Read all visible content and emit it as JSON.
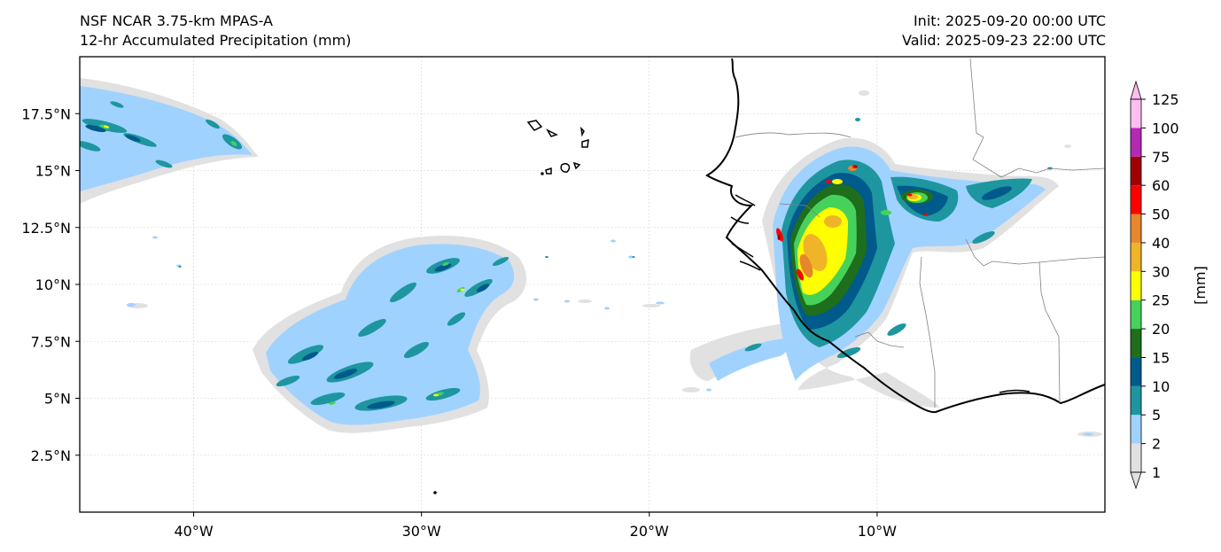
{
  "header": {
    "title_line1": "NSF NCAR 3.75-km MPAS-A",
    "title_line2": "12-hr Accumulated Precipitation (mm)",
    "init": "Init: 2025-09-20 00:00 UTC",
    "valid": "Valid: 2025-09-23 22:00 UTC"
  },
  "map": {
    "lon_range": [
      -45,
      0
    ],
    "lat_range": [
      0,
      20
    ],
    "lon_ticks": [
      {
        "value": -40,
        "label": "40°W"
      },
      {
        "value": -30,
        "label": "30°W"
      },
      {
        "value": -20,
        "label": "20°W"
      },
      {
        "value": -10,
        "label": "10°W"
      }
    ],
    "lat_ticks": [
      {
        "value": 17.5,
        "label": "17.5°N"
      },
      {
        "value": 15,
        "label": "15°N"
      },
      {
        "value": 12.5,
        "label": "12.5°N"
      },
      {
        "value": 10,
        "label": "10°N"
      },
      {
        "value": 7.5,
        "label": "7.5°N"
      },
      {
        "value": 5,
        "label": "5°N"
      },
      {
        "value": 2.5,
        "label": "2.5°N"
      }
    ],
    "gridlines": true
  },
  "colorbar": {
    "unit_label": "[mm]",
    "levels": [
      "1",
      "2",
      "5",
      "10",
      "15",
      "20",
      "25",
      "30",
      "40",
      "50",
      "60",
      "75",
      "100",
      "125"
    ],
    "colors": [
      "#e1e1e1",
      "#a0d2ff",
      "#1e96a0",
      "#005a8c",
      "#1e6e1e",
      "#46d25a",
      "#ffff00",
      "#f0b428",
      "#e6872d",
      "#ff0000",
      "#a00000",
      "#b428b4",
      "#ffbef0"
    ],
    "extend": "both"
  }
}
